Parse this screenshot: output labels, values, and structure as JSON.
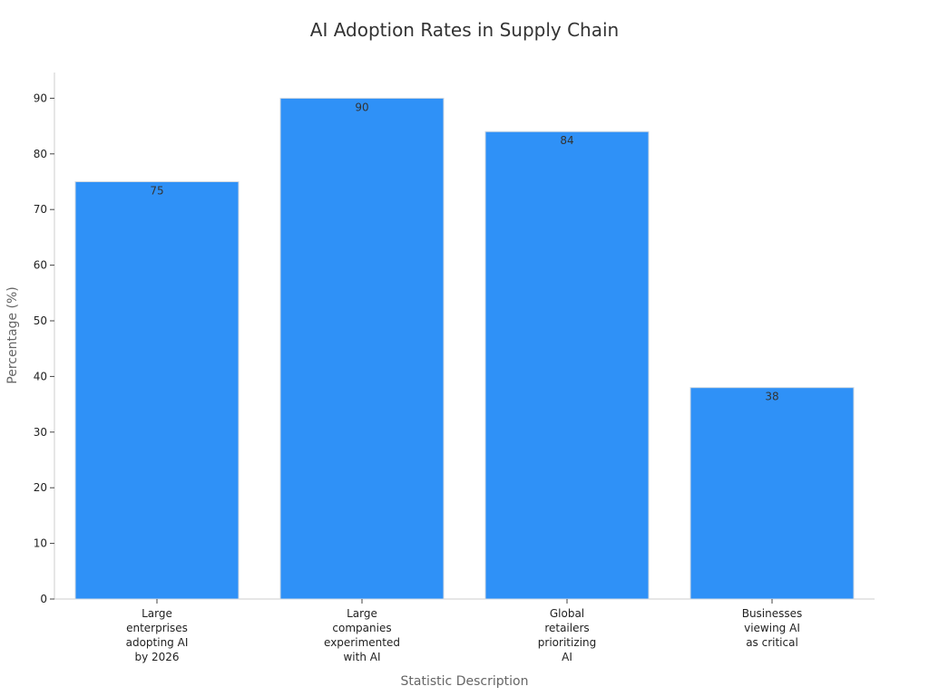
{
  "chart_data": {
    "type": "bar",
    "title": "AI Adoption Rates in Supply Chain",
    "xlabel": "Statistic Description",
    "ylabel": "Percentage (%)",
    "categories": [
      [
        "Large",
        "enterprises",
        "adopting AI",
        "by 2026"
      ],
      [
        "Large",
        "companies",
        "experimented",
        "with AI"
      ],
      [
        "Global",
        "retailers",
        "prioritizing",
        "AI"
      ],
      [
        "Businesses",
        "viewing AI",
        "as critical"
      ]
    ],
    "values": [
      75,
      90,
      84,
      38
    ],
    "ylim": [
      0,
      95
    ],
    "yticks": [
      0,
      10,
      20,
      30,
      40,
      50,
      60,
      70,
      80,
      90
    ],
    "grid": false,
    "colors": {
      "bar": "#2f91f7",
      "bar_edge": "#d0d8e0",
      "axis": "#cccccc"
    }
  }
}
